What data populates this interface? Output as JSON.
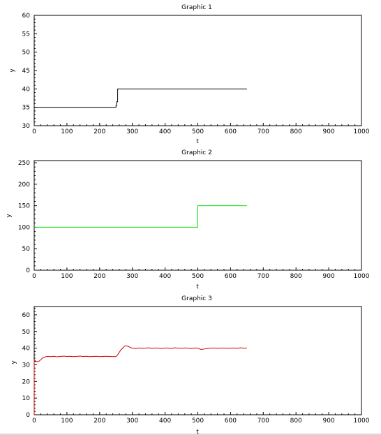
{
  "chart_data": [
    {
      "type": "line",
      "title": "Graphic 1",
      "xlabel": "t",
      "ylabel": "y",
      "xlim": [
        0,
        1000
      ],
      "ylim": [
        30,
        60
      ],
      "xticks": [
        0,
        100,
        200,
        300,
        400,
        500,
        600,
        700,
        800,
        900,
        1000
      ],
      "yticks": [
        30,
        35,
        40,
        45,
        50,
        55,
        60
      ],
      "series": [
        {
          "color": "#000000",
          "x": [
            0,
            250,
            250,
            252,
            252,
            255,
            255,
            650
          ],
          "y": [
            35,
            35,
            35.5,
            35.5,
            36.5,
            36.5,
            40,
            40
          ]
        }
      ]
    },
    {
      "type": "line",
      "title": "Graphic 2",
      "xlabel": "t",
      "ylabel": "y",
      "xlim": [
        0,
        1000
      ],
      "ylim": [
        0,
        255
      ],
      "xticks": [
        0,
        100,
        200,
        300,
        400,
        500,
        600,
        700,
        800,
        900,
        1000
      ],
      "yticks": [
        0,
        50,
        100,
        150,
        200,
        250
      ],
      "series": [
        {
          "color": "#00dd00",
          "x": [
            0,
            500,
            500,
            650
          ],
          "y": [
            100,
            100,
            150,
            150
          ]
        }
      ]
    },
    {
      "type": "line",
      "title": "Graphic 3",
      "xlabel": "t",
      "ylabel": "y",
      "xlim": [
        0,
        1000
      ],
      "ylim": [
        0,
        65
      ],
      "xticks": [
        0,
        100,
        200,
        300,
        400,
        500,
        600,
        700,
        800,
        900,
        1000
      ],
      "yticks": [
        0,
        10,
        20,
        30,
        40,
        50,
        60
      ],
      "series": [
        {
          "color": "#cc0000",
          "x": [
            0,
            0,
            3,
            6,
            10,
            15,
            20,
            25,
            30,
            35,
            40,
            50,
            60,
            70,
            80,
            90,
            100,
            110,
            120,
            130,
            140,
            150,
            160,
            170,
            180,
            190,
            200,
            210,
            220,
            230,
            240,
            250,
            255,
            260,
            265,
            270,
            275,
            280,
            285,
            290,
            295,
            300,
            310,
            320,
            330,
            340,
            350,
            360,
            370,
            380,
            390,
            400,
            410,
            420,
            430,
            440,
            450,
            460,
            470,
            480,
            490,
            500,
            505,
            510,
            520,
            530,
            540,
            550,
            560,
            570,
            580,
            590,
            600,
            610,
            620,
            630,
            640,
            650
          ],
          "y": [
            0,
            33,
            32.5,
            32,
            31.8,
            32.2,
            33,
            34,
            34.5,
            34.8,
            35,
            34.9,
            35.1,
            34.8,
            35,
            35.2,
            35,
            35.1,
            34.9,
            35,
            35.2,
            35,
            35.1,
            34.9,
            35,
            35.1,
            34.9,
            35,
            35.1,
            35,
            34.9,
            35,
            36,
            37.5,
            39,
            40,
            41,
            41.5,
            41.2,
            40.8,
            40.3,
            40,
            39.8,
            40.1,
            39.9,
            40,
            40.2,
            39.9,
            40.1,
            40,
            39.8,
            40.1,
            40,
            39.9,
            40.2,
            40,
            39.9,
            40.1,
            40,
            39.8,
            40.1,
            40,
            39.5,
            39.2,
            39.5,
            39.8,
            40,
            40.1,
            39.9,
            40,
            40.1,
            39.9,
            40,
            40.1,
            39.9,
            40.2,
            40,
            40.1
          ]
        }
      ]
    }
  ]
}
